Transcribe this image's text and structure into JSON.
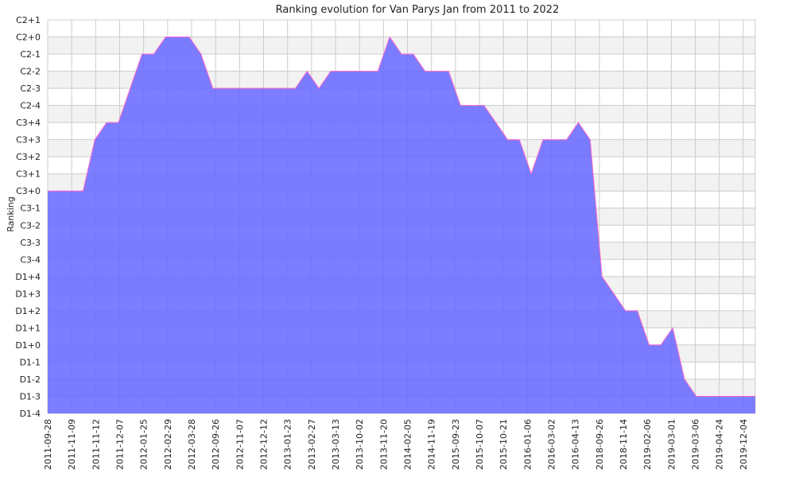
{
  "chart_data": {
    "type": "area",
    "title": "Ranking evolution for Van Parys Jan from 2011 to 2022",
    "xlabel": "",
    "ylabel": "Ranking",
    "y_ticks": [
      "D1-4",
      "D1-3",
      "D1-2",
      "D1-1",
      "D1+0",
      "D1+1",
      "D1+2",
      "D1+3",
      "D1+4",
      "C3-4",
      "C3-3",
      "C3-2",
      "C3-1",
      "C3+0",
      "C3+1",
      "C3+2",
      "C3+3",
      "C3+4",
      "C2-4",
      "C2-3",
      "C2-2",
      "C2-1",
      "C2+0",
      "C2+1"
    ],
    "x_ticks": [
      "2011-09-28",
      "2011-11-09",
      "2011-11-12",
      "2011-12-07",
      "2012-01-25",
      "2012-02-29",
      "2012-03-28",
      "2012-09-26",
      "2012-11-07",
      "2012-12-12",
      "2013-01-23",
      "2013-02-27",
      "2013-03-13",
      "2013-10-02",
      "2013-11-20",
      "2014-02-05",
      "2014-11-19",
      "2015-09-23",
      "2015-10-07",
      "2015-10-21",
      "2016-01-06",
      "2016-03-02",
      "2016-04-13",
      "2018-09-26",
      "2018-11-14",
      "2019-02-06",
      "2019-03-01",
      "2019-03-06",
      "2019-04-24",
      "2019-12-04"
    ],
    "series": [
      {
        "values": [
          "C3+0",
          "C3+0",
          "C3+0",
          "C3+0",
          "C3+3",
          "C3+4",
          "C3+4",
          "C2-3",
          "C2-1",
          "C2-1",
          "C2+0",
          "C2+0",
          "C2+0",
          "C2-1",
          "C2-3",
          "C2-3",
          "C2-3",
          "C2-3",
          "C2-3",
          "C2-3",
          "C2-3",
          "C2-3",
          "C2-2",
          "C2-3",
          "C2-2",
          "C2-2",
          "C2-2",
          "C2-2",
          "C2-2",
          "C2+0",
          "C2-1",
          "C2-1",
          "C2-2",
          "C2-2",
          "C2-2",
          "C2-4",
          "C2-4",
          "C2-4",
          "C3+4",
          "C3+3",
          "C3+3",
          "C3+1",
          "C3+3",
          "C3+3",
          "C3+3",
          "C3+4",
          "C3+3",
          "D1+4",
          "D1+3",
          "D1+2",
          "D1+2",
          "D1+0",
          "D1+0",
          "D1+1",
          "D1-2",
          "D1-3",
          "D1-3",
          "D1-3",
          "D1-3",
          "D1-3",
          "D1-3"
        ]
      }
    ],
    "ylim": [
      "D1-4",
      "C2+1"
    ],
    "grid": true,
    "legend": "none",
    "colors": {
      "area_fill": "#6666ff",
      "line": "#ff66cc",
      "grid": "#cccccc",
      "band": "#f2f2f2"
    }
  }
}
